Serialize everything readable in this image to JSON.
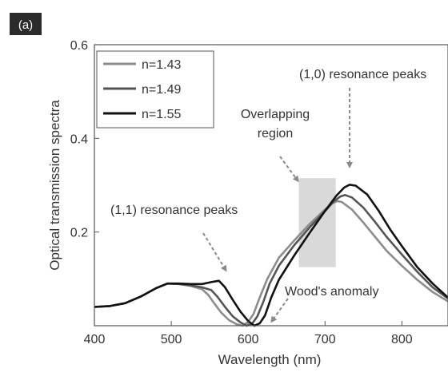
{
  "panel_label": "(a)",
  "chart_data": {
    "type": "line",
    "title": "",
    "xlabel": "Wavelength (nm)",
    "ylabel": "Optical transmission spectra",
    "xlim": [
      400,
      860
    ],
    "ylim": [
      0.0,
      0.6
    ],
    "xticks": [
      400,
      500,
      600,
      700,
      800
    ],
    "yticks": [
      0.2,
      0.4,
      0.6
    ],
    "xtick_labels": [
      "400",
      "500",
      "600",
      "700",
      "800"
    ],
    "ytick_labels": [
      "0.2",
      "0.4",
      "0.6"
    ],
    "grid": false,
    "legend_position": "top-left",
    "series": [
      {
        "name": "n=1.43",
        "color": "#8c8c8c",
        "x": [
          400,
          420,
          440,
          460,
          480,
          495,
          510,
          525,
          540,
          548,
          555,
          565,
          575,
          585,
          593,
          600,
          607,
          615,
          625,
          640,
          660,
          680,
          700,
          710,
          716,
          722,
          735,
          750,
          765,
          780,
          800,
          820,
          840,
          860
        ],
        "y": [
          0.04,
          0.042,
          0.048,
          0.062,
          0.08,
          0.09,
          0.089,
          0.085,
          0.078,
          0.066,
          0.05,
          0.028,
          0.012,
          0.003,
          0.0,
          0.008,
          0.025,
          0.06,
          0.1,
          0.145,
          0.182,
          0.217,
          0.248,
          0.262,
          0.266,
          0.264,
          0.248,
          0.22,
          0.19,
          0.16,
          0.128,
          0.098,
          0.072,
          0.052
        ]
      },
      {
        "name": "n=1.49",
        "color": "#555555",
        "x": [
          400,
          420,
          440,
          460,
          480,
          495,
          510,
          525,
          540,
          552,
          560,
          570,
          580,
          590,
          598,
          605,
          612,
          620,
          628,
          640,
          660,
          680,
          700,
          712,
          720,
          726,
          735,
          750,
          765,
          780,
          800,
          820,
          840,
          860
        ],
        "y": [
          0.04,
          0.042,
          0.048,
          0.062,
          0.08,
          0.09,
          0.089,
          0.086,
          0.082,
          0.076,
          0.062,
          0.04,
          0.02,
          0.007,
          0.0,
          0.004,
          0.02,
          0.052,
          0.09,
          0.128,
          0.172,
          0.21,
          0.245,
          0.266,
          0.276,
          0.279,
          0.274,
          0.252,
          0.222,
          0.19,
          0.152,
          0.115,
          0.082,
          0.058
        ]
      },
      {
        "name": "n=1.55",
        "color": "#111111",
        "x": [
          400,
          420,
          440,
          460,
          480,
          495,
          510,
          525,
          540,
          552,
          562,
          570,
          580,
          590,
          600,
          608,
          615,
          622,
          630,
          640,
          660,
          680,
          700,
          715,
          725,
          732,
          740,
          755,
          770,
          785,
          800,
          820,
          840,
          860
        ],
        "y": [
          0.04,
          0.042,
          0.048,
          0.062,
          0.08,
          0.09,
          0.09,
          0.089,
          0.089,
          0.093,
          0.096,
          0.082,
          0.055,
          0.03,
          0.01,
          0.0,
          0.005,
          0.022,
          0.06,
          0.098,
          0.15,
          0.198,
          0.245,
          0.278,
          0.295,
          0.301,
          0.299,
          0.28,
          0.245,
          0.205,
          0.17,
          0.125,
          0.09,
          0.06
        ]
      }
    ],
    "annotations": [
      {
        "text": "(1,0) resonance peaks"
      },
      {
        "text": "Overlapping"
      },
      {
        "text": "region"
      },
      {
        "text": "(1,1) resonance peaks"
      },
      {
        "text": "Wood's anomaly"
      }
    ],
    "shaded_region": {
      "xmin": 666,
      "xmax": 714,
      "ymin": 0.125,
      "ymax": 0.315,
      "color": "#d9d9d9"
    }
  }
}
